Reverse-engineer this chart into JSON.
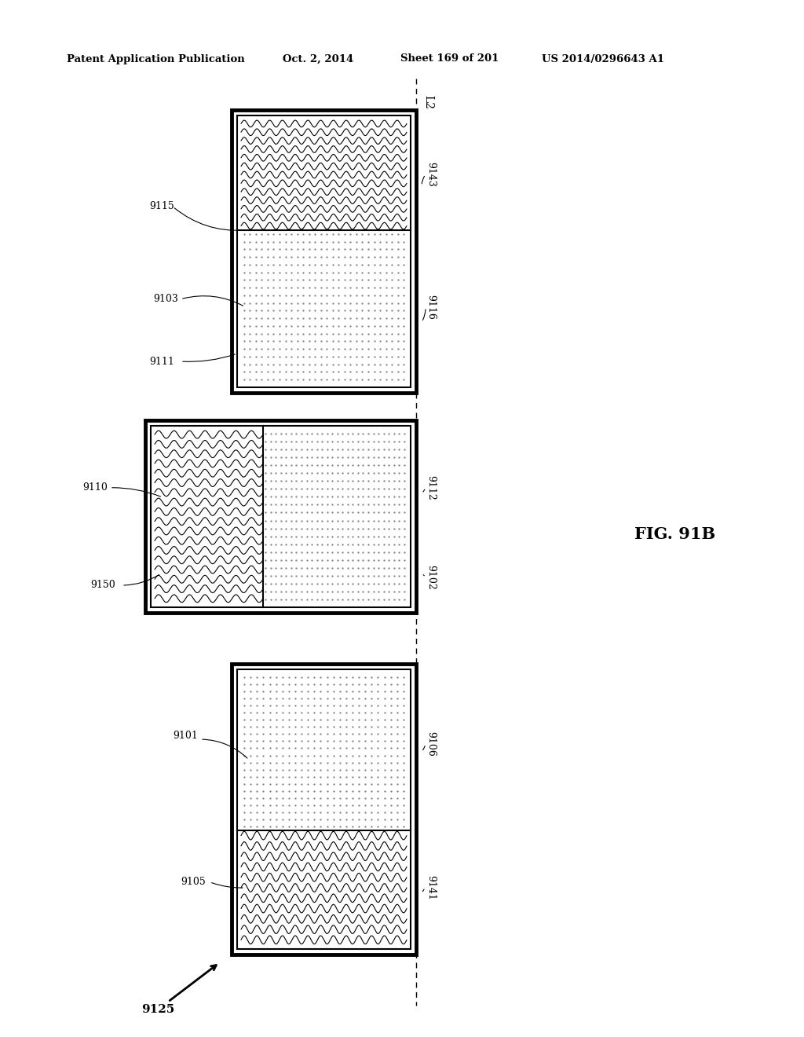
{
  "bg_color": "#ffffff",
  "header_text": "Patent Application Publication",
  "header_date": "Oct. 2, 2014",
  "header_sheet": "Sheet 169 of 201",
  "header_patent": "US 2014/0296643 A1",
  "fig_label": "FIG. 91B",
  "dashed_line_x": 0.518,
  "L2_label": "L2"
}
